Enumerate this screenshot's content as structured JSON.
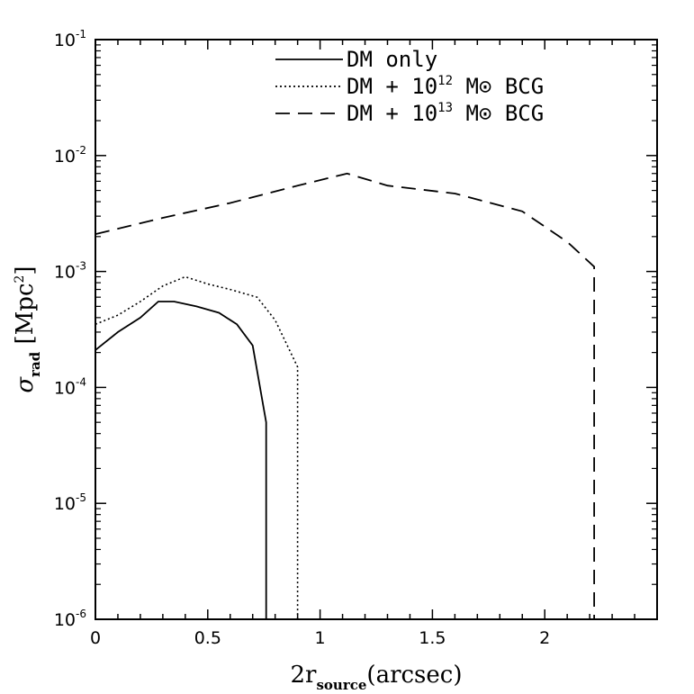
{
  "chart_data": {
    "type": "line",
    "xlabel": {
      "main": "2r",
      "sub": "source",
      "rest": "(arcsec)"
    },
    "ylabel": {
      "main": "σ",
      "sub": "rad",
      "rest": " [Mpc",
      "sup": "2",
      "close": "]"
    },
    "xlim": [
      0,
      2.5
    ],
    "ylim": [
      1e-06,
      0.1
    ],
    "yscale": "log",
    "x_ticks": [
      "0",
      "0.5",
      "1",
      "1.5",
      "2"
    ],
    "y_ticks": [
      {
        "base": "10",
        "exp": "-6"
      },
      {
        "base": "10",
        "exp": "-5"
      },
      {
        "base": "10",
        "exp": "-4"
      },
      {
        "base": "10",
        "exp": "-3"
      },
      {
        "base": "10",
        "exp": "-2"
      },
      {
        "base": "10",
        "exp": "-1"
      }
    ],
    "legend": {
      "placement": "top-right",
      "entries": [
        {
          "label": "DM only",
          "pre": "DM only",
          "sup": "",
          "post": ""
        },
        {
          "label": "DM + 10^12 M⊙ BCG",
          "pre": "DM + 10",
          "sup": "12",
          "post": " M⊙ BCG"
        },
        {
          "label": "DM + 10^13 M⊙ BCG",
          "pre": "DM + 10",
          "sup": "13",
          "post": " M⊙ BCG"
        }
      ]
    },
    "series": [
      {
        "name": "DM only",
        "style": "solid",
        "x": [
          0.0,
          0.1,
          0.2,
          0.28,
          0.35,
          0.45,
          0.55,
          0.63,
          0.7,
          0.76,
          0.76
        ],
        "y": [
          0.00021,
          0.0003,
          0.0004,
          0.00055,
          0.00055,
          0.0005,
          0.00044,
          0.00035,
          0.00023,
          5e-05,
          1e-06
        ]
      },
      {
        "name": "DM + 10^12 M⊙ BCG",
        "style": "dotted",
        "x": [
          0.0,
          0.1,
          0.2,
          0.3,
          0.4,
          0.5,
          0.6,
          0.72,
          0.8,
          0.9,
          0.9
        ],
        "y": [
          0.00035,
          0.00042,
          0.00055,
          0.00075,
          0.0009,
          0.00078,
          0.0007,
          0.0006,
          0.00038,
          0.00015,
          1e-06
        ]
      },
      {
        "name": "DM + 10^13 M⊙ BCG",
        "style": "dashed",
        "x": [
          0.0,
          0.3,
          0.6,
          0.9,
          1.12,
          1.3,
          1.6,
          1.9,
          2.1,
          2.22,
          2.22
        ],
        "y": [
          0.0021,
          0.0029,
          0.0039,
          0.0055,
          0.007,
          0.0055,
          0.0047,
          0.0033,
          0.0018,
          0.0011,
          1e-06
        ]
      }
    ]
  }
}
